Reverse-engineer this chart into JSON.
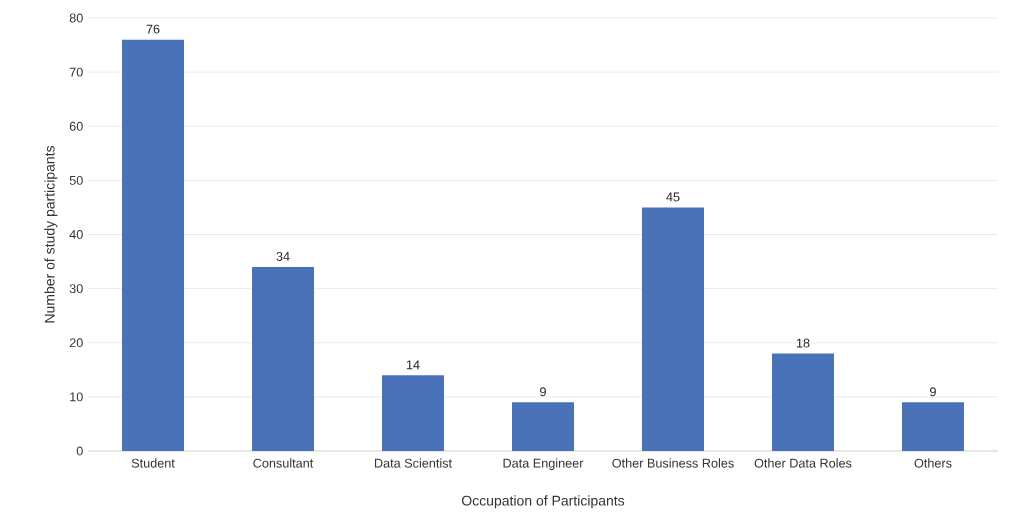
{
  "chart_data": {
    "type": "bar",
    "xlabel": "Occupation of Participants",
    "ylabel": "Number of study participants",
    "categories": [
      "Student",
      "Consultant",
      "Data Scientist",
      "Data Engineer",
      "Other Business Roles",
      "Other Data Roles",
      "Others"
    ],
    "values": [
      76,
      34,
      14,
      9,
      45,
      18,
      9
    ],
    "color": "#4a72b8",
    "ylim": [
      0,
      80
    ],
    "yticks": [
      0,
      10,
      20,
      30,
      40,
      50,
      60,
      70,
      80
    ],
    "grid": "y",
    "data_labels": true
  }
}
